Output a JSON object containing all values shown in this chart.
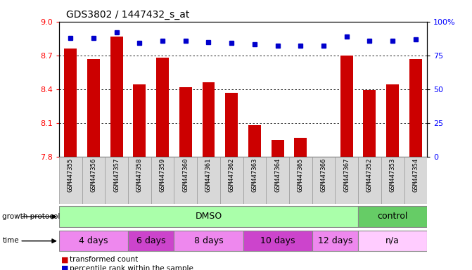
{
  "title": "GDS3802 / 1447432_s_at",
  "samples": [
    "GSM447355",
    "GSM447356",
    "GSM447357",
    "GSM447358",
    "GSM447359",
    "GSM447360",
    "GSM447361",
    "GSM447362",
    "GSM447363",
    "GSM447364",
    "GSM447365",
    "GSM447366",
    "GSM447367",
    "GSM447352",
    "GSM447353",
    "GSM447354"
  ],
  "bar_values": [
    8.76,
    8.67,
    8.87,
    8.44,
    8.68,
    8.42,
    8.46,
    8.37,
    8.08,
    7.95,
    7.97,
    7.8,
    8.7,
    8.39,
    8.44,
    8.67
  ],
  "percentile_values": [
    88,
    88,
    92,
    84,
    86,
    86,
    85,
    84,
    83,
    82,
    82,
    82,
    89,
    86,
    86,
    87
  ],
  "bar_color": "#cc0000",
  "dot_color": "#0000cc",
  "ylim_left": [
    7.8,
    9.0
  ],
  "ylim_right": [
    0,
    100
  ],
  "yticks_left": [
    7.8,
    8.1,
    8.4,
    8.7,
    9.0
  ],
  "yticks_right": [
    0,
    25,
    50,
    75,
    100
  ],
  "grid_lines": [
    8.1,
    8.4,
    8.7
  ],
  "growth_protocol_groups": [
    {
      "label": "DMSO",
      "start": 0,
      "end": 13,
      "color": "#aaffaa"
    },
    {
      "label": "control",
      "start": 13,
      "end": 16,
      "color": "#66cc66"
    }
  ],
  "time_groups": [
    {
      "label": "4 days",
      "start": 0,
      "end": 3,
      "color": "#ee88ee"
    },
    {
      "label": "6 days",
      "start": 3,
      "end": 5,
      "color": "#cc44cc"
    },
    {
      "label": "8 days",
      "start": 5,
      "end": 8,
      "color": "#ee88ee"
    },
    {
      "label": "10 days",
      "start": 8,
      "end": 11,
      "color": "#cc44cc"
    },
    {
      "label": "12 days",
      "start": 11,
      "end": 13,
      "color": "#ee88ee"
    },
    {
      "label": "n/a",
      "start": 13,
      "end": 16,
      "color": "#ffccff"
    }
  ],
  "background_color": "#ffffff"
}
